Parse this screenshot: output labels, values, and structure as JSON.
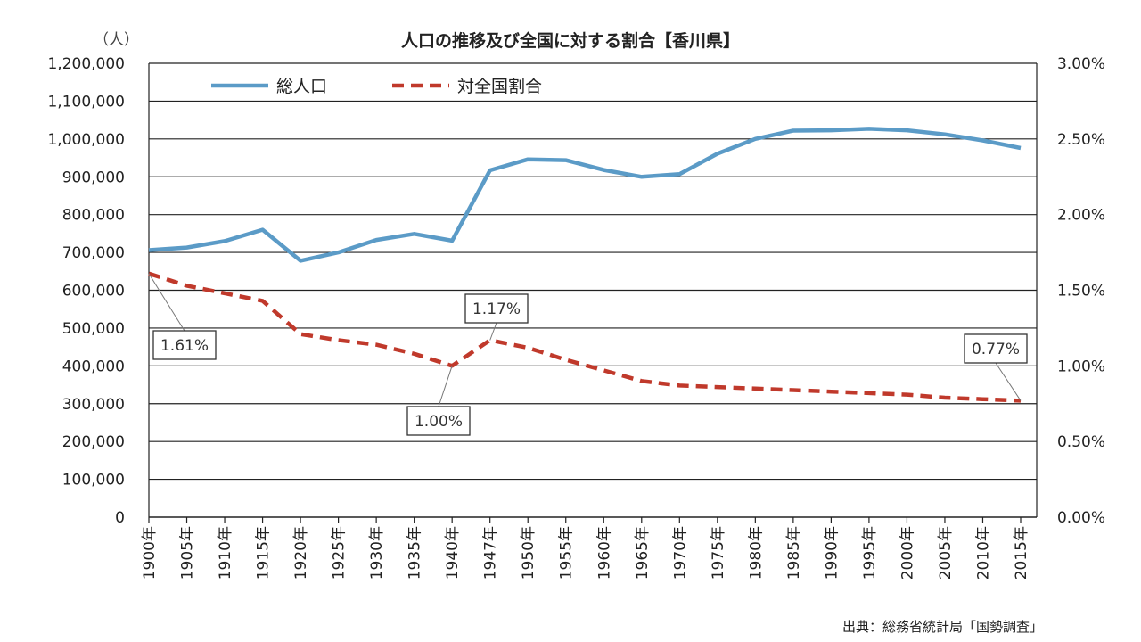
{
  "chart_data": {
    "type": "line",
    "title": "人口の推移及び全国に対する割合【香川県】",
    "y_unit": "（人）",
    "source": "出典：総務省統計局「国勢調査」",
    "categories": [
      "1900年",
      "1905年",
      "1910年",
      "1915年",
      "1920年",
      "1925年",
      "1930年",
      "1935年",
      "1940年",
      "1947年",
      "1950年",
      "1955年",
      "1960年",
      "1965年",
      "1970年",
      "1975年",
      "1980年",
      "1985年",
      "1990年",
      "1995年",
      "2000年",
      "2005年",
      "2010年",
      "2015年"
    ],
    "y_left": {
      "ticks": [
        "0",
        "100,000",
        "200,000",
        "300,000",
        "400,000",
        "500,000",
        "600,000",
        "700,000",
        "800,000",
        "900,000",
        "1,000,000",
        "1,100,000",
        "1,200,000"
      ],
      "range": [
        0,
        1200000
      ]
    },
    "y_right": {
      "ticks": [
        "0.00%",
        "0.50%",
        "1.00%",
        "1.50%",
        "2.00%",
        "2.50%",
        "3.00%"
      ],
      "range": [
        0,
        3.0
      ]
    },
    "grid": true,
    "legend_placement": "top-left",
    "series": [
      {
        "name": "総人口",
        "axis": "left",
        "style": "solid",
        "color": "#5b9bc7",
        "values": [
          706000,
          713000,
          730000,
          760000,
          678000,
          700000,
          733000,
          749000,
          731000,
          917000,
          946000,
          944000,
          918000,
          900000,
          907000,
          961000,
          1000000,
          1022000,
          1023000,
          1027000,
          1023000,
          1012000,
          996000,
          976000
        ]
      },
      {
        "name": "対全国割合",
        "axis": "right",
        "style": "dashed",
        "color": "#c0392b",
        "values": [
          1.61,
          1.53,
          1.48,
          1.43,
          1.21,
          1.17,
          1.14,
          1.08,
          1.0,
          1.17,
          1.12,
          1.04,
          0.97,
          0.9,
          0.87,
          0.86,
          0.85,
          0.84,
          0.83,
          0.82,
          0.81,
          0.79,
          0.78,
          0.77
        ]
      }
    ],
    "annotations": [
      {
        "label": "1.61%",
        "series": 1,
        "index": 0
      },
      {
        "label": "1.00%",
        "series": 1,
        "index": 8
      },
      {
        "label": "1.17%",
        "series": 1,
        "index": 9
      },
      {
        "label": "0.77%",
        "series": 1,
        "index": 23
      }
    ]
  }
}
